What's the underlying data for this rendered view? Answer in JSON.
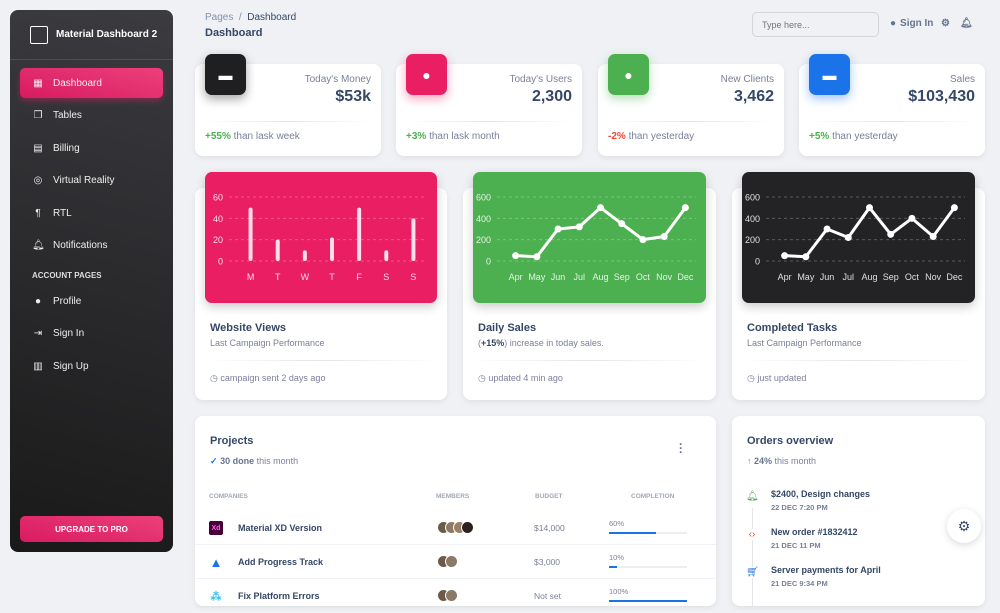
{
  "sidebar": {
    "brand": "Material Dashboard 2",
    "items": [
      {
        "label": "Dashboard",
        "icon": "dashboard-icon"
      },
      {
        "label": "Tables",
        "icon": "table-icon"
      },
      {
        "label": "Billing",
        "icon": "receipt-icon"
      },
      {
        "label": "Virtual Reality",
        "icon": "view-in-ar-icon"
      },
      {
        "label": "RTL",
        "icon": "format-textdirection-icon"
      },
      {
        "label": "Notifications",
        "icon": "bell-icon"
      }
    ],
    "section": "ACCOUNT PAGES",
    "account_items": [
      {
        "label": "Profile",
        "icon": "person-icon"
      },
      {
        "label": "Sign In",
        "icon": "login-icon"
      },
      {
        "label": "Sign Up",
        "icon": "assignment-icon"
      }
    ],
    "upgrade": "UPGRADE TO PRO",
    "active_color": "#e91e63"
  },
  "header": {
    "breadcrumb_root": "Pages",
    "breadcrumb_sep": "/",
    "breadcrumb_current": "Dashboard",
    "title": "Dashboard",
    "search_placeholder": "Type here...",
    "sign_in": "Sign In"
  },
  "stats": [
    {
      "label": "Today's Money",
      "value": "$53k",
      "change": "+55%",
      "change_text": "than lask week",
      "trend": "pos",
      "color": "#1f1f22"
    },
    {
      "label": "Today's Users",
      "value": "2,300",
      "change": "+3%",
      "change_text": "than lask month",
      "trend": "pos",
      "color": "#e91e63"
    },
    {
      "label": "New Clients",
      "value": "3,462",
      "change": "-2%",
      "change_text": "than yesterday",
      "trend": "neg",
      "color": "#4caf50"
    },
    {
      "label": "Sales",
      "value": "$103,430",
      "change": "+5%",
      "change_text": "than yesterday",
      "trend": "pos",
      "color": "#1a73e8"
    }
  ],
  "chart_cards": [
    {
      "title": "Website Views",
      "subtitle": "Last Campaign Performance",
      "footer": "campaign sent 2 days ago",
      "color": "#e91e63"
    },
    {
      "title": "Daily Sales",
      "subtitle_bold": "+15%",
      "subtitle_pre": "(",
      "subtitle_post": ") increase in today sales.",
      "footer": "updated 4 min ago",
      "color": "#4caf50"
    },
    {
      "title": "Completed Tasks",
      "subtitle": "Last Campaign Performance",
      "footer": "just updated",
      "color": "#232326"
    }
  ],
  "chart_data": [
    {
      "type": "bar",
      "categories": [
        "M",
        "T",
        "W",
        "T",
        "F",
        "S",
        "S"
      ],
      "values": [
        50,
        20,
        10,
        22,
        50,
        10,
        40
      ],
      "ylim": [
        0,
        60
      ],
      "yticks": [
        0,
        20,
        40,
        60
      ],
      "grid": true
    },
    {
      "type": "line",
      "categories": [
        "Apr",
        "May",
        "Jun",
        "Jul",
        "Aug",
        "Sep",
        "Oct",
        "Nov",
        "Dec"
      ],
      "values": [
        50,
        40,
        300,
        320,
        500,
        350,
        200,
        230,
        500
      ],
      "ylim": [
        0,
        600
      ],
      "yticks": [
        0,
        200,
        400,
        600
      ],
      "grid": true
    },
    {
      "type": "line",
      "categories": [
        "Apr",
        "May",
        "Jun",
        "Jul",
        "Aug",
        "Sep",
        "Oct",
        "Nov",
        "Dec"
      ],
      "values": [
        50,
        40,
        300,
        220,
        500,
        250,
        400,
        230,
        500
      ],
      "ylim": [
        0,
        600
      ],
      "yticks": [
        0,
        200,
        400,
        600
      ],
      "grid": true
    }
  ],
  "projects": {
    "title": "Projects",
    "done": "30 done",
    "done_suffix": "this month",
    "columns": [
      "COMPANIES",
      "MEMBERS",
      "BUDGET",
      "COMPLETION"
    ],
    "rows": [
      {
        "name": "Material XD Version",
        "logo": "Xd",
        "members": 4,
        "budget": "$14,000",
        "completion": "60%",
        "progress": 60
      },
      {
        "name": "Add Progress Track",
        "logo": "atlassian",
        "members": 2,
        "budget": "$3,000",
        "completion": "10%",
        "progress": 10
      },
      {
        "name": "Fix Platform Errors",
        "logo": "slack",
        "members": 2,
        "budget": "Not set",
        "completion": "100%",
        "progress": 100
      }
    ]
  },
  "orders": {
    "title": "Orders overview",
    "pct": "24%",
    "pct_suffix": "this month",
    "items": [
      {
        "title": "$2400, Design changes",
        "date": "22 DEC 7:20 PM",
        "icon": "bell-icon",
        "color": "#4caf50"
      },
      {
        "title": "New order #1832412",
        "date": "21 DEC 11 PM",
        "icon": "code-icon",
        "color": "#f44335"
      },
      {
        "title": "Server payments for April",
        "date": "21 DEC 9:34 PM",
        "icon": "cart-icon",
        "color": "#1a73e8"
      }
    ]
  }
}
